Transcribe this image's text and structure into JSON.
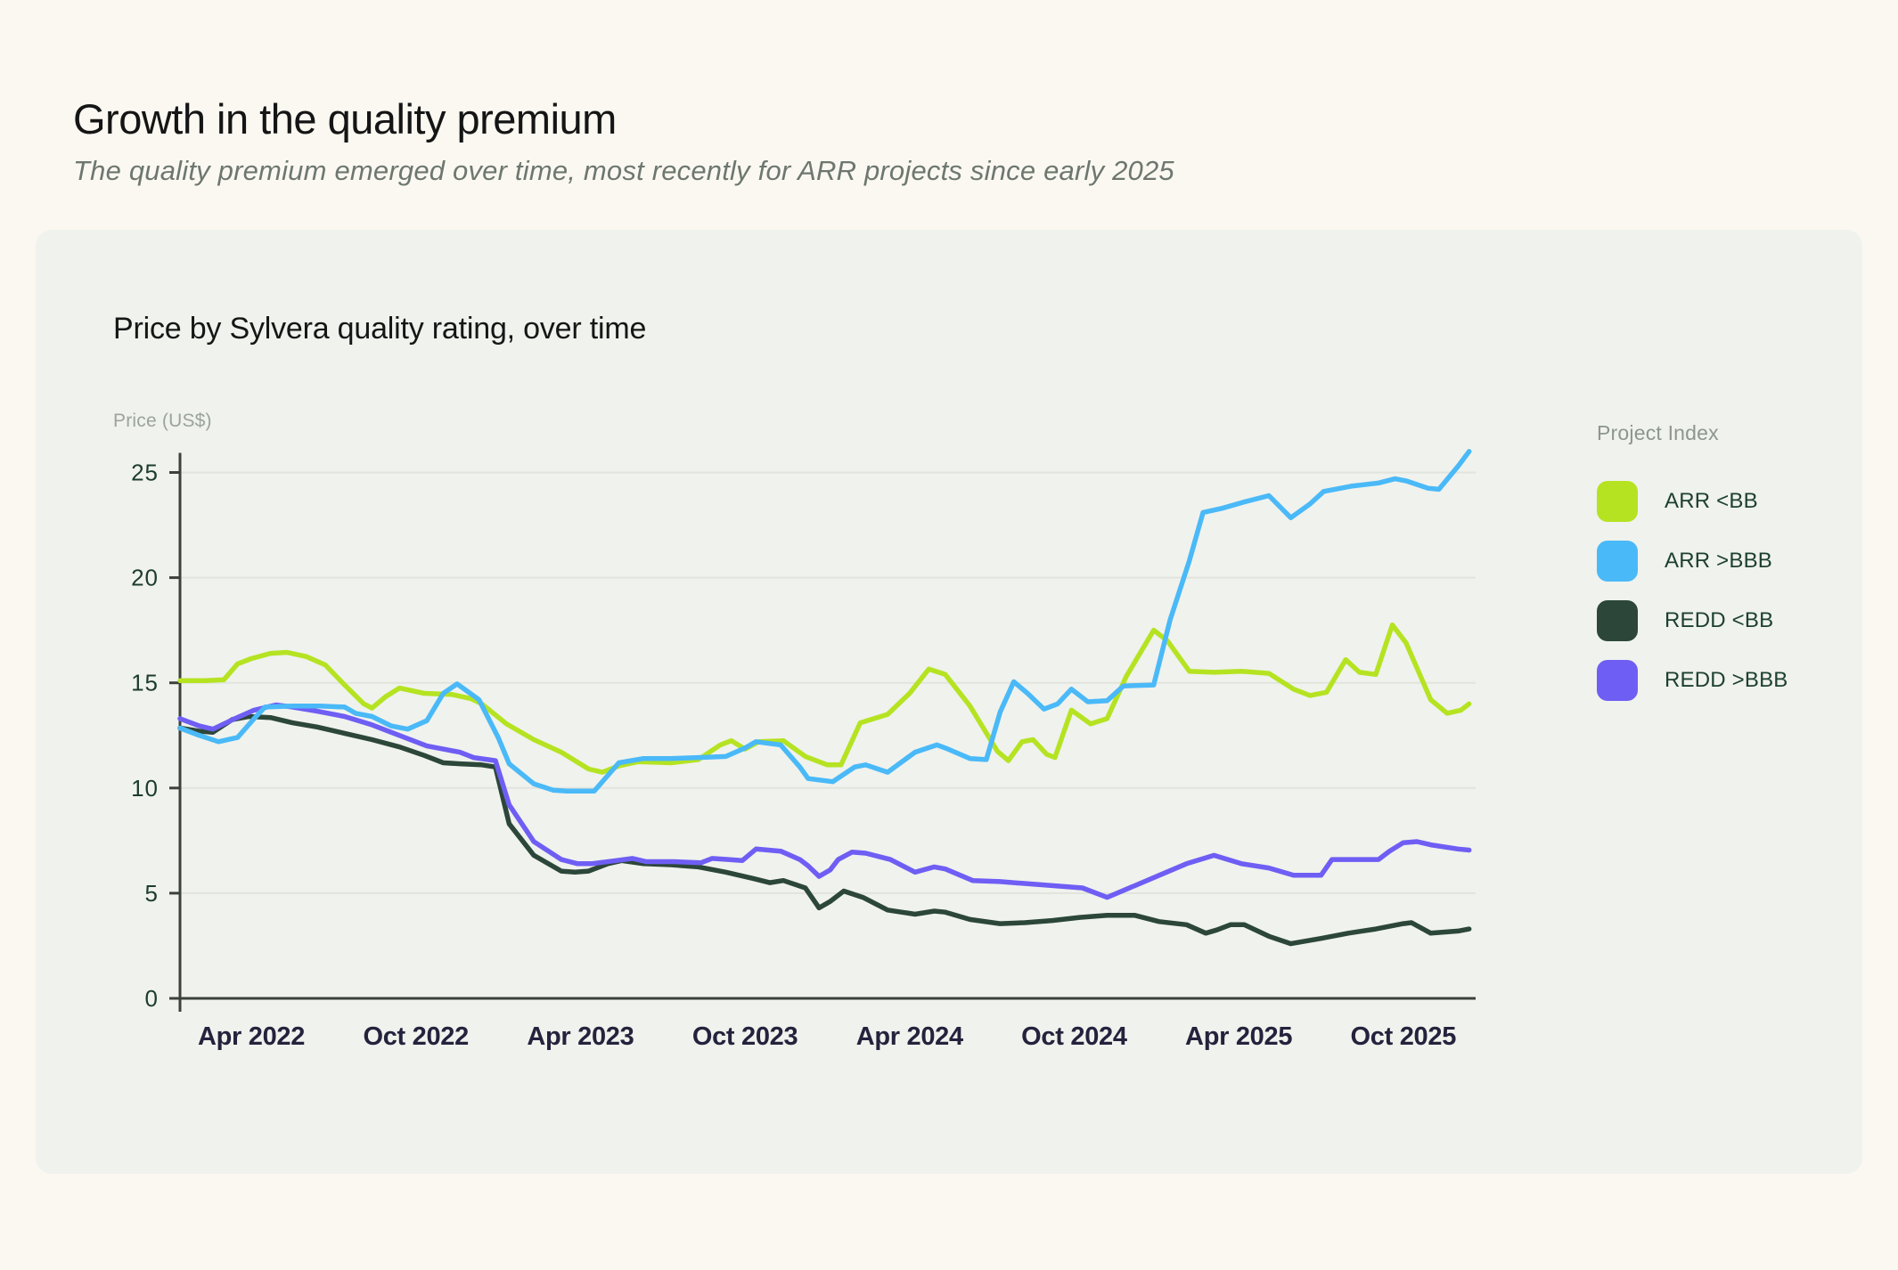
{
  "page": {
    "title": "Growth in the quality premium",
    "subtitle": "The quality premium emerged over time, most recently for ARR projects since early 2025"
  },
  "card": {
    "chart_title": "Price by Sylvera quality rating, over time",
    "y_axis_title": "Price (US$)"
  },
  "legend": {
    "title": "Project Index",
    "items": [
      {
        "label": "ARR <BB",
        "color": "#b5e322"
      },
      {
        "label": "ARR >BBB",
        "color": "#4ab9f8"
      },
      {
        "label": "REDD <BB",
        "color": "#2c473a"
      },
      {
        "label": "REDD >BBB",
        "color": "#6f5ef4"
      }
    ]
  },
  "chart_data": {
    "type": "line",
    "title": "Price by Sylvera quality rating, over time",
    "xlabel": "",
    "ylabel": "Price (US$)",
    "x_unit": "months since Jan 2022",
    "x_range": [
      0.4,
      47.6
    ],
    "ylim": [
      0,
      26.5
    ],
    "grid": "horizontal",
    "legend_position": "right",
    "y_ticks": [
      0,
      5,
      10,
      15,
      20,
      25
    ],
    "x_ticks": [
      {
        "t": 3,
        "label": "Apr 2022"
      },
      {
        "t": 9,
        "label": "Oct 2022"
      },
      {
        "t": 15,
        "label": "Apr 2023"
      },
      {
        "t": 21,
        "label": "Oct 2023"
      },
      {
        "t": 27,
        "label": "Apr 2024"
      },
      {
        "t": 33,
        "label": "Oct 2024"
      },
      {
        "t": 39,
        "label": "Apr 2025"
      },
      {
        "t": 45,
        "label": "Oct 2025"
      }
    ],
    "series": [
      {
        "name": "REDD <BB",
        "color": "#2c473a",
        "points": [
          [
            0.4,
            12.85
          ],
          [
            1.1,
            12.7
          ],
          [
            1.6,
            12.65
          ],
          [
            2.3,
            13.25
          ],
          [
            2.9,
            13.4
          ],
          [
            3.7,
            13.35
          ],
          [
            4.5,
            13.1
          ],
          [
            5.4,
            12.9
          ],
          [
            6.4,
            12.6
          ],
          [
            7.4,
            12.3
          ],
          [
            8.4,
            11.95
          ],
          [
            9.3,
            11.55
          ],
          [
            10.0,
            11.2
          ],
          [
            10.6,
            11.15
          ],
          [
            11.4,
            11.1
          ],
          [
            11.9,
            11.0
          ],
          [
            12.4,
            8.3
          ],
          [
            13.3,
            6.8
          ],
          [
            14.3,
            6.05
          ],
          [
            14.8,
            6.0
          ],
          [
            15.3,
            6.05
          ],
          [
            16.0,
            6.4
          ],
          [
            16.5,
            6.55
          ],
          [
            17.3,
            6.4
          ],
          [
            18.3,
            6.35
          ],
          [
            19.3,
            6.25
          ],
          [
            20.3,
            6.0
          ],
          [
            21.3,
            5.7
          ],
          [
            21.9,
            5.5
          ],
          [
            22.4,
            5.6
          ],
          [
            23.2,
            5.25
          ],
          [
            23.7,
            4.3
          ],
          [
            24.1,
            4.6
          ],
          [
            24.6,
            5.1
          ],
          [
            25.3,
            4.8
          ],
          [
            26.2,
            4.2
          ],
          [
            27.2,
            4.0
          ],
          [
            27.9,
            4.15
          ],
          [
            28.3,
            4.1
          ],
          [
            29.2,
            3.75
          ],
          [
            30.3,
            3.55
          ],
          [
            31.2,
            3.6
          ],
          [
            32.2,
            3.7
          ],
          [
            33.2,
            3.85
          ],
          [
            34.2,
            3.95
          ],
          [
            35.2,
            3.95
          ],
          [
            36.1,
            3.65
          ],
          [
            37.1,
            3.5
          ],
          [
            37.8,
            3.1
          ],
          [
            38.2,
            3.25
          ],
          [
            38.7,
            3.5
          ],
          [
            39.2,
            3.5
          ],
          [
            40.1,
            2.95
          ],
          [
            40.9,
            2.6
          ],
          [
            42.0,
            2.85
          ],
          [
            43.0,
            3.1
          ],
          [
            44.0,
            3.3
          ],
          [
            45.0,
            3.55
          ],
          [
            45.3,
            3.6
          ],
          [
            46.0,
            3.1
          ],
          [
            47.0,
            3.2
          ],
          [
            47.4,
            3.3
          ]
        ]
      },
      {
        "name": "REDD >BBB",
        "color": "#6f5ef4",
        "points": [
          [
            0.4,
            13.3
          ],
          [
            1.1,
            12.95
          ],
          [
            1.6,
            12.8
          ],
          [
            2.4,
            13.3
          ],
          [
            3.1,
            13.7
          ],
          [
            3.9,
            13.95
          ],
          [
            4.5,
            13.85
          ],
          [
            5.4,
            13.65
          ],
          [
            6.4,
            13.4
          ],
          [
            7.4,
            13.0
          ],
          [
            8.4,
            12.5
          ],
          [
            9.4,
            12.0
          ],
          [
            10.0,
            11.85
          ],
          [
            10.6,
            11.7
          ],
          [
            11.1,
            11.45
          ],
          [
            11.9,
            11.3
          ],
          [
            12.4,
            9.2
          ],
          [
            13.3,
            7.45
          ],
          [
            14.3,
            6.6
          ],
          [
            14.9,
            6.4
          ],
          [
            15.4,
            6.4
          ],
          [
            16.3,
            6.55
          ],
          [
            16.9,
            6.65
          ],
          [
            17.4,
            6.5
          ],
          [
            18.4,
            6.5
          ],
          [
            19.4,
            6.45
          ],
          [
            19.8,
            6.65
          ],
          [
            20.4,
            6.6
          ],
          [
            20.9,
            6.55
          ],
          [
            21.4,
            7.1
          ],
          [
            22.3,
            7.0
          ],
          [
            23.0,
            6.6
          ],
          [
            23.3,
            6.3
          ],
          [
            23.7,
            5.8
          ],
          [
            24.1,
            6.1
          ],
          [
            24.4,
            6.6
          ],
          [
            24.9,
            6.95
          ],
          [
            25.4,
            6.9
          ],
          [
            26.3,
            6.6
          ],
          [
            27.2,
            6.0
          ],
          [
            27.9,
            6.25
          ],
          [
            28.3,
            6.15
          ],
          [
            29.3,
            5.6
          ],
          [
            30.3,
            5.55
          ],
          [
            31.3,
            5.45
          ],
          [
            32.3,
            5.35
          ],
          [
            33.3,
            5.25
          ],
          [
            34.2,
            4.8
          ],
          [
            35.2,
            5.35
          ],
          [
            36.1,
            5.85
          ],
          [
            37.1,
            6.4
          ],
          [
            38.1,
            6.8
          ],
          [
            39.1,
            6.4
          ],
          [
            40.1,
            6.2
          ],
          [
            41.0,
            5.85
          ],
          [
            42.0,
            5.85
          ],
          [
            42.4,
            6.6
          ],
          [
            43.4,
            6.6
          ],
          [
            44.1,
            6.6
          ],
          [
            44.5,
            7.0
          ],
          [
            45.0,
            7.4
          ],
          [
            45.5,
            7.45
          ],
          [
            46.0,
            7.3
          ],
          [
            47.0,
            7.1
          ],
          [
            47.4,
            7.05
          ]
        ]
      },
      {
        "name": "ARR <BB",
        "color": "#b5e322",
        "points": [
          [
            0.4,
            15.1
          ],
          [
            1.3,
            15.1
          ],
          [
            2.0,
            15.15
          ],
          [
            2.5,
            15.9
          ],
          [
            3.0,
            16.15
          ],
          [
            3.7,
            16.4
          ],
          [
            4.3,
            16.45
          ],
          [
            5.0,
            16.25
          ],
          [
            5.7,
            15.85
          ],
          [
            6.4,
            14.9
          ],
          [
            7.1,
            14.0
          ],
          [
            7.4,
            13.8
          ],
          [
            7.9,
            14.35
          ],
          [
            8.4,
            14.75
          ],
          [
            9.3,
            14.5
          ],
          [
            10.3,
            14.45
          ],
          [
            11.0,
            14.25
          ],
          [
            11.4,
            14.0
          ],
          [
            12.3,
            13.05
          ],
          [
            13.3,
            12.3
          ],
          [
            14.3,
            11.7
          ],
          [
            15.3,
            10.9
          ],
          [
            15.8,
            10.75
          ],
          [
            16.4,
            11.05
          ],
          [
            17.1,
            11.25
          ],
          [
            18.3,
            11.2
          ],
          [
            19.3,
            11.35
          ],
          [
            20.1,
            12.05
          ],
          [
            20.5,
            12.25
          ],
          [
            21.0,
            11.85
          ],
          [
            21.5,
            12.2
          ],
          [
            22.4,
            12.25
          ],
          [
            23.2,
            11.5
          ],
          [
            24.0,
            11.1
          ],
          [
            24.5,
            11.1
          ],
          [
            25.2,
            13.1
          ],
          [
            26.2,
            13.5
          ],
          [
            27.0,
            14.5
          ],
          [
            27.7,
            15.65
          ],
          [
            28.3,
            15.4
          ],
          [
            29.2,
            13.9
          ],
          [
            30.2,
            11.75
          ],
          [
            30.6,
            11.3
          ],
          [
            31.1,
            12.2
          ],
          [
            31.5,
            12.3
          ],
          [
            32.0,
            11.6
          ],
          [
            32.3,
            11.45
          ],
          [
            32.9,
            13.7
          ],
          [
            33.6,
            13.05
          ],
          [
            34.2,
            13.3
          ],
          [
            34.9,
            15.3
          ],
          [
            35.9,
            17.5
          ],
          [
            36.4,
            17.0
          ],
          [
            37.2,
            15.55
          ],
          [
            38.1,
            15.5
          ],
          [
            39.1,
            15.55
          ],
          [
            40.1,
            15.45
          ],
          [
            41.0,
            14.7
          ],
          [
            41.6,
            14.4
          ],
          [
            42.2,
            14.55
          ],
          [
            42.9,
            16.1
          ],
          [
            43.4,
            15.5
          ],
          [
            44.0,
            15.4
          ],
          [
            44.6,
            17.75
          ],
          [
            45.1,
            16.9
          ],
          [
            46.0,
            14.2
          ],
          [
            46.6,
            13.55
          ],
          [
            47.1,
            13.7
          ],
          [
            47.4,
            14.0
          ]
        ]
      },
      {
        "name": "ARR >BBB",
        "color": "#4ab9f8",
        "points": [
          [
            0.4,
            12.85
          ],
          [
            1.0,
            12.55
          ],
          [
            1.8,
            12.2
          ],
          [
            2.5,
            12.4
          ],
          [
            3.1,
            13.3
          ],
          [
            3.5,
            13.85
          ],
          [
            4.5,
            13.9
          ],
          [
            5.5,
            13.9
          ],
          [
            6.4,
            13.85
          ],
          [
            6.8,
            13.55
          ],
          [
            7.4,
            13.4
          ],
          [
            8.1,
            12.95
          ],
          [
            8.7,
            12.8
          ],
          [
            9.4,
            13.2
          ],
          [
            10.0,
            14.5
          ],
          [
            10.5,
            14.95
          ],
          [
            11.3,
            14.2
          ],
          [
            12.0,
            12.4
          ],
          [
            12.4,
            11.15
          ],
          [
            13.3,
            10.2
          ],
          [
            14.0,
            9.9
          ],
          [
            14.5,
            9.85
          ],
          [
            15.5,
            9.85
          ],
          [
            16.0,
            10.6
          ],
          [
            16.4,
            11.2
          ],
          [
            17.3,
            11.4
          ],
          [
            18.3,
            11.4
          ],
          [
            19.3,
            11.45
          ],
          [
            20.3,
            11.5
          ],
          [
            21.0,
            11.9
          ],
          [
            21.4,
            12.2
          ],
          [
            22.3,
            12.05
          ],
          [
            23.0,
            11.0
          ],
          [
            23.3,
            10.45
          ],
          [
            24.2,
            10.3
          ],
          [
            25.0,
            11.0
          ],
          [
            25.4,
            11.1
          ],
          [
            26.2,
            10.75
          ],
          [
            27.2,
            11.7
          ],
          [
            28.0,
            12.05
          ],
          [
            28.4,
            11.85
          ],
          [
            29.2,
            11.4
          ],
          [
            29.8,
            11.35
          ],
          [
            30.3,
            13.6
          ],
          [
            30.8,
            15.05
          ],
          [
            31.3,
            14.5
          ],
          [
            31.9,
            13.75
          ],
          [
            32.4,
            14.0
          ],
          [
            32.9,
            14.7
          ],
          [
            33.5,
            14.1
          ],
          [
            34.2,
            14.15
          ],
          [
            34.8,
            14.85
          ],
          [
            35.9,
            14.9
          ],
          [
            36.5,
            18.0
          ],
          [
            37.2,
            20.8
          ],
          [
            37.7,
            23.1
          ],
          [
            38.4,
            23.3
          ],
          [
            39.2,
            23.6
          ],
          [
            40.1,
            23.9
          ],
          [
            40.9,
            22.85
          ],
          [
            41.6,
            23.5
          ],
          [
            42.1,
            24.1
          ],
          [
            43.1,
            24.35
          ],
          [
            44.1,
            24.5
          ],
          [
            44.7,
            24.7
          ],
          [
            45.1,
            24.6
          ],
          [
            45.9,
            24.25
          ],
          [
            46.3,
            24.2
          ],
          [
            47.0,
            25.3
          ],
          [
            47.4,
            26.0
          ]
        ]
      }
    ]
  },
  "colors": {
    "page_bg": "#faf8f1",
    "card_bg": "#f0f2ed",
    "grid": "#e1e4dc",
    "axis": "#3c413c",
    "y_tick_text": "#1c3c2e",
    "x_tick_text": "#23233d",
    "title_text": "#151515",
    "subtitle_text": "#6d776f"
  }
}
